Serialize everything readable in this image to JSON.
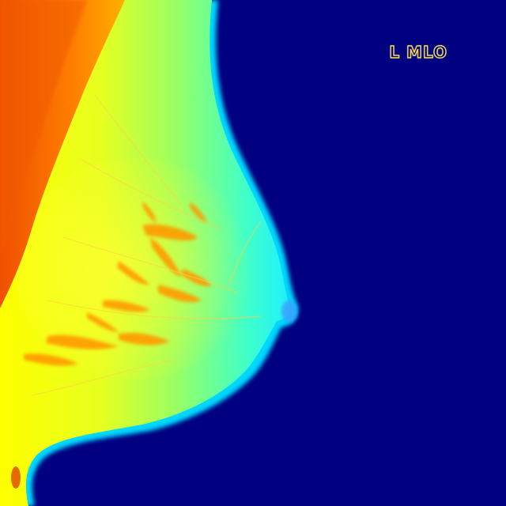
{
  "image": {
    "colormap": "jet",
    "background_color": "#000080"
  },
  "overlay": {
    "view_label": "L MLO"
  },
  "colors": {
    "skin_edge": "#00e6ff",
    "tissue_outer": "#40ffc0",
    "tissue_mid": "#b8ff40",
    "tissue_dense": "#ffff00",
    "fibro_strands": "#ff9a00",
    "pectoral_muscle": "#ff7a00",
    "pectoral_core": "#e64a00"
  }
}
